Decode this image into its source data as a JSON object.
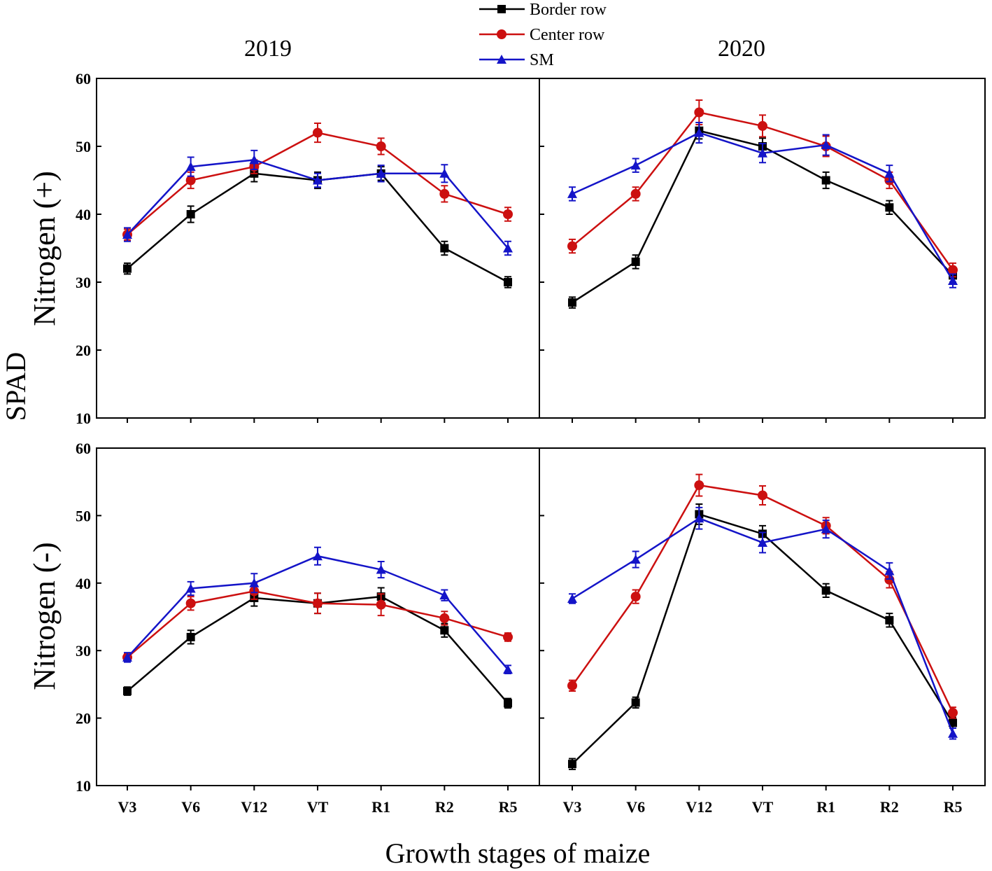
{
  "chart_data": {
    "type": "line",
    "categories": [
      "V3",
      "V6",
      "V12",
      "VT",
      "R1",
      "R2",
      "R5"
    ],
    "ylabel": "SPAD",
    "xlabel": "Growth stages of maize",
    "ylim": [
      10,
      60
    ],
    "yticks": [
      10,
      20,
      30,
      40,
      50,
      60
    ],
    "grid": false,
    "legend": {
      "position": "top-center",
      "entries": [
        {
          "name": "Border row",
          "color": "#000000",
          "marker": "square"
        },
        {
          "name": "Center row",
          "color": "#cc1010",
          "marker": "circle"
        },
        {
          "name": "SM",
          "color": "#1414c8",
          "marker": "triangle"
        }
      ]
    },
    "columns": [
      "2019",
      "2020"
    ],
    "rows": [
      "Nitrogen (+)",
      "Nitrogen (-)"
    ],
    "panels": [
      {
        "year": "2019",
        "nitrogen": "Nitrogen (+)",
        "series": [
          {
            "name": "Border row",
            "values": [
              32,
              40,
              46,
              45,
              46,
              35,
              30
            ],
            "errors": [
              0.8,
              1.2,
              1.2,
              1.2,
              1.0,
              1.0,
              0.8
            ]
          },
          {
            "name": "Center row",
            "values": [
              37,
              45,
              47,
              52,
              50,
              43,
              40
            ],
            "errors": [
              0.8,
              1.2,
              1.0,
              1.4,
              1.2,
              1.2,
              1.0
            ]
          },
          {
            "name": "SM",
            "values": [
              37,
              47,
              48,
              45,
              46,
              46,
              35
            ],
            "errors": [
              1.0,
              1.4,
              1.4,
              1.0,
              1.2,
              1.3,
              1.0
            ]
          }
        ]
      },
      {
        "year": "2020",
        "nitrogen": "Nitrogen (+)",
        "series": [
          {
            "name": "Border row",
            "values": [
              27,
              33,
              52.3,
              50,
              45,
              41,
              31
            ],
            "errors": [
              0.8,
              1.0,
              1.2,
              1.2,
              1.2,
              1.0,
              1.0
            ]
          },
          {
            "name": "Center row",
            "values": [
              35.3,
              43,
              55,
              53,
              50,
              45,
              31.8
            ],
            "errors": [
              1.0,
              1.0,
              1.8,
              1.6,
              1.5,
              1.2,
              1.0
            ]
          },
          {
            "name": "SM",
            "values": [
              43,
              47.2,
              52,
              49,
              50.2,
              46,
              30.2
            ],
            "errors": [
              1.0,
              1.0,
              1.5,
              1.4,
              1.5,
              1.2,
              1.0
            ]
          }
        ]
      },
      {
        "year": "2019",
        "nitrogen": "Nitrogen (-)",
        "series": [
          {
            "name": "Border row",
            "values": [
              24,
              32,
              37.8,
              37,
              38,
              33,
              22.2
            ],
            "errors": [
              0.6,
              1.0,
              1.2,
              1.5,
              1.3,
              1.0,
              0.7
            ]
          },
          {
            "name": "Center row",
            "values": [
              29,
              37,
              38.8,
              37,
              36.8,
              34.8,
              32
            ],
            "errors": [
              0.6,
              1.0,
              1.2,
              1.5,
              1.6,
              1.0,
              0.6
            ]
          },
          {
            "name": "SM",
            "values": [
              29,
              39.2,
              40,
              44,
              42,
              38.2,
              27.2
            ],
            "errors": [
              0.7,
              1.0,
              1.4,
              1.3,
              1.2,
              0.8,
              0.6
            ]
          }
        ]
      },
      {
        "year": "2020",
        "nitrogen": "Nitrogen (-)",
        "series": [
          {
            "name": "Border row",
            "values": [
              13.2,
              22.3,
              50.2,
              47.3,
              38.9,
              34.5,
              19.3
            ],
            "errors": [
              0.8,
              0.8,
              1.5,
              1.2,
              1.0,
              1.0,
              0.8
            ]
          },
          {
            "name": "Center row",
            "values": [
              24.8,
              38,
              54.5,
              53,
              48.5,
              40.5,
              20.8
            ],
            "errors": [
              0.8,
              1.0,
              1.6,
              1.4,
              1.2,
              1.2,
              0.8
            ]
          },
          {
            "name": "SM",
            "values": [
              37.7,
              43.5,
              49.6,
              46,
              48,
              41.8,
              17.7
            ],
            "errors": [
              0.7,
              1.2,
              1.6,
              1.5,
              1.3,
              1.2,
              0.8
            ]
          }
        ]
      }
    ]
  }
}
